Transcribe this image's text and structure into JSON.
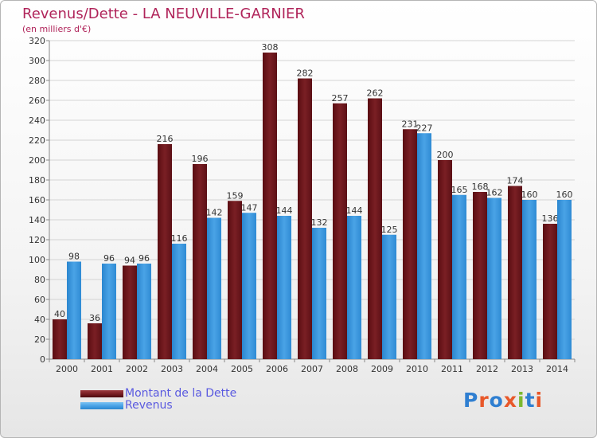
{
  "title": "Revenus/Dette - LA NEUVILLE-GARNIER",
  "subtitle": "(en milliers d'€)",
  "colors": {
    "dette": "#7a1f24",
    "revenus": "#4aa3e6",
    "title": "#b0245a",
    "legend_text": "#5a5ae0"
  },
  "legend": {
    "dette": "Montant de la Dette",
    "revenus": "Revenus"
  },
  "logo": {
    "text": "Proxiti",
    "letter_colors": [
      "#2f7fd1",
      "#e8582a",
      "#2f7fd1",
      "#e8582a",
      "#7cb82f",
      "#2f7fd1",
      "#e8582a"
    ]
  },
  "chart_data": {
    "type": "bar",
    "categories": [
      "2000",
      "2001",
      "2002",
      "2003",
      "2004",
      "2005",
      "2006",
      "2007",
      "2008",
      "2009",
      "2010",
      "2011",
      "2012",
      "2013",
      "2014"
    ],
    "series": [
      {
        "name": "Montant de la Dette",
        "values": [
          40,
          36,
          94,
          216,
          196,
          159,
          308,
          282,
          257,
          262,
          231,
          200,
          168,
          174,
          136
        ]
      },
      {
        "name": "Revenus",
        "values": [
          98,
          96,
          96,
          116,
          142,
          147,
          144,
          132,
          144,
          125,
          227,
          165,
          162,
          160,
          160
        ]
      }
    ],
    "ylim": [
      0,
      320
    ],
    "yticks": [
      0,
      20,
      40,
      60,
      80,
      100,
      120,
      140,
      160,
      180,
      200,
      220,
      240,
      260,
      280,
      300,
      320
    ],
    "grid": true,
    "legend_position": "bottom-left"
  }
}
